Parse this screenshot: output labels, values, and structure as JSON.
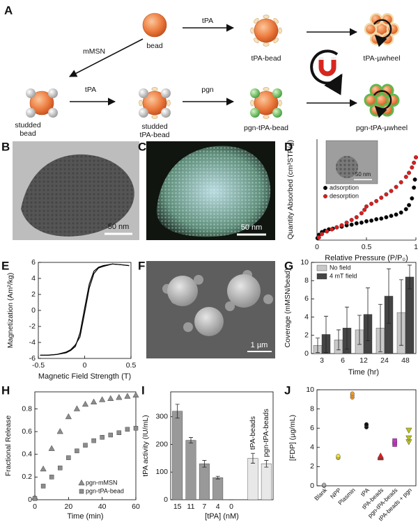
{
  "figure_a": {
    "label": "A",
    "nodes": {
      "bead": "bead",
      "tpa_bead": "tPA-bead",
      "tpa_uwheel": "tPA-µwheel",
      "studded_bead": [
        "studded",
        "bead"
      ],
      "studded_tpa_bead": [
        "studded",
        "tPA-bead"
      ],
      "pgn_tpa_bead": "pgn-tPA-bead",
      "pgn_tpa_uwheel": "pgn-tPA-µwheel"
    },
    "arrows": {
      "bead_to_tpa_bead": "tPA",
      "bead_to_studded": "mMSN",
      "studded_to_studded_tpa": "tPA",
      "studded_tpa_to_pgn": "pgn"
    }
  },
  "images": {
    "B": {
      "label": "B",
      "scale_bar": "50 nm"
    },
    "C": {
      "label": "C",
      "scale_bar": "50 nm"
    },
    "F": {
      "label": "F",
      "scale_bar": "1 µm"
    }
  },
  "chart_data": [
    {
      "label": "D",
      "type": "scatter",
      "inset_scale_bar": "50 nm",
      "x_label": "Relative Pressure (P/P₀)",
      "y_label": "Quantity Absorbed (cm³STP/g)",
      "xlim": [
        0,
        1
      ],
      "xticks": [
        0,
        0.5,
        1
      ],
      "ylim": [
        0,
        150
      ],
      "legend": "upper left",
      "series": [
        {
          "name": "adsorption",
          "color": "#000000",
          "marker": "circle",
          "x": [
            0.005,
            0.02,
            0.05,
            0.08,
            0.12,
            0.16,
            0.2,
            0.25,
            0.3,
            0.35,
            0.4,
            0.45,
            0.5,
            0.55,
            0.6,
            0.65,
            0.7,
            0.75,
            0.8,
            0.85,
            0.9,
            0.93,
            0.96,
            0.98,
            0.99
          ],
          "values": [
            3,
            8,
            12,
            14,
            16,
            17,
            19,
            20,
            22,
            23,
            25,
            26,
            28,
            29,
            31,
            32,
            34,
            36,
            38,
            41,
            46,
            52,
            62,
            78,
            90
          ]
        },
        {
          "name": "desorption",
          "color": "#e41a1c",
          "marker": "circle",
          "x": [
            0.02,
            0.05,
            0.1,
            0.15,
            0.2,
            0.25,
            0.3,
            0.35,
            0.4,
            0.45,
            0.48,
            0.5,
            0.55,
            0.6,
            0.65,
            0.7,
            0.75,
            0.8,
            0.85,
            0.9,
            0.93,
            0.96,
            0.98,
            1.0
          ],
          "values": [
            4,
            9,
            13,
            16,
            19,
            22,
            26,
            30,
            34,
            40,
            45,
            50,
            54,
            58,
            63,
            68,
            73,
            79,
            86,
            94,
            100,
            108,
            115,
            123
          ]
        }
      ]
    },
    {
      "label": "E",
      "type": "line",
      "x_label": "Magnetic Field Strength (T)",
      "y_label": "Magnetization (Am²/kg)",
      "xlim": [
        -0.5,
        0.5
      ],
      "xticks": [
        -0.5,
        0,
        0.5
      ],
      "ylim": [
        -6,
        6
      ],
      "yticks": [
        -6,
        -4,
        -2,
        0,
        2,
        4,
        6
      ],
      "x": [
        -0.48,
        -0.4,
        -0.3,
        -0.2,
        -0.15,
        -0.1,
        -0.05,
        0,
        0.05,
        0.1,
        0.15,
        0.2,
        0.3,
        0.4,
        0.48
      ],
      "series": [
        {
          "color": "#000000",
          "values": [
            -5.6,
            -5.6,
            -5.5,
            -5.3,
            -5.0,
            -4.5,
            -2.8,
            0.3,
            3.3,
            4.9,
            5.4,
            5.6,
            5.8,
            5.7,
            5.6
          ]
        },
        {
          "color": "#000000",
          "values": [
            -5.6,
            -5.6,
            -5.5,
            -5.2,
            -4.9,
            -4.3,
            -3.3,
            -0.3,
            2.8,
            4.6,
            5.3,
            5.5,
            5.8,
            5.7,
            5.6
          ]
        }
      ]
    },
    {
      "label": "G",
      "type": "bar",
      "x_label": "Time (hr)",
      "y_label": "Coverage (mMSN/bead)",
      "categories": [
        "3",
        "6",
        "12",
        "24",
        "48"
      ],
      "ylim": [
        0,
        10
      ],
      "yticks": [
        0,
        2,
        4,
        6,
        8,
        10
      ],
      "legend": "upper left",
      "series": [
        {
          "name": "No field",
          "color": "#c8c8c8",
          "values": [
            0.9,
            1.5,
            2.6,
            2.8,
            4.5
          ],
          "errors": [
            0.8,
            1.1,
            1.6,
            2.6,
            3.6
          ]
        },
        {
          "name": "4 mT field",
          "color": "#444444",
          "values": [
            2.1,
            2.8,
            4.3,
            6.3,
            8.4
          ],
          "errors": [
            2.0,
            2.3,
            2.9,
            3.0,
            1.3
          ]
        }
      ]
    },
    {
      "label": "H",
      "type": "scatter",
      "x_label": "Time (min)",
      "y_label": "Fractional Release",
      "xlim": [
        0,
        60
      ],
      "xticks": [
        0,
        20,
        40,
        60
      ],
      "ylim": [
        0,
        0.95
      ],
      "yticks": [
        0,
        0.2,
        0.4,
        0.6,
        0.8
      ],
      "legend": "lower right",
      "x": [
        0,
        5,
        10,
        15,
        20,
        25,
        30,
        35,
        40,
        45,
        50,
        55,
        60
      ],
      "series": [
        {
          "name": "pgn-mMSN",
          "color": "#8c8c8c",
          "marker": "triangle",
          "values": [
            0.02,
            0.27,
            0.45,
            0.6,
            0.73,
            0.8,
            0.84,
            0.86,
            0.88,
            0.89,
            0.9,
            0.91,
            0.92
          ]
        },
        {
          "name": "pgn-tPA-bead",
          "color": "#8c8c8c",
          "marker": "square",
          "values": [
            0.01,
            0.12,
            0.2,
            0.28,
            0.37,
            0.43,
            0.48,
            0.52,
            0.55,
            0.57,
            0.59,
            0.62,
            0.63
          ]
        }
      ]
    },
    {
      "label": "I",
      "type": "bar",
      "x_label": "[tPA] (nM)",
      "y_label": "tPA activity (IU/mL)",
      "categories": [
        "15",
        "11",
        "7",
        "4",
        "0"
      ],
      "values": [
        320,
        215,
        130,
        80,
        0
      ],
      "errors": [
        25,
        10,
        12,
        5,
        0
      ],
      "color": "#999999",
      "ylim": [
        0,
        390
      ],
      "yticks": [
        0,
        100,
        200,
        300
      ],
      "extra_bars": [
        {
          "name": "tPA-beads",
          "value": 150,
          "error": 18
        },
        {
          "name": "pgn-tPA-beads",
          "value": 130,
          "error": 12
        }
      ],
      "extra_color": "#e8e8e8"
    },
    {
      "label": "J",
      "type": "strip",
      "y_label": "[FDP] (µg/mL)",
      "categories": [
        "Blank",
        "NPP",
        "Plasmin",
        "tPA",
        "tPA-beads",
        "pgn-tPA-beads",
        "tPA-beads + pgn"
      ],
      "ylim": [
        0,
        10
      ],
      "yticks": [
        0,
        2,
        4,
        6,
        8,
        10
      ],
      "groups": [
        {
          "color": "#aaaaaa",
          "marker": "circle",
          "values": [
            0,
            0.05,
            0.1
          ]
        },
        {
          "color": "#f2e024",
          "marker": "circle",
          "values": [
            2.9,
            3.0,
            3.1
          ]
        },
        {
          "color": "#f29a2e",
          "marker": "circle",
          "values": [
            9.2,
            9.4,
            9.6
          ]
        },
        {
          "color": "#111111",
          "marker": "circle",
          "values": [
            6.1,
            6.3,
            6.4
          ]
        },
        {
          "color": "#e31a1c",
          "marker": "triangle",
          "values": [
            2.9,
            3.0,
            3.1
          ]
        },
        {
          "color": "#d62ad6",
          "marker": "square",
          "values": [
            4.3,
            4.5,
            4.7
          ]
        },
        {
          "color": "#bcc21a",
          "marker": "triangle-down",
          "values": [
            4.6,
            5.0,
            5.8
          ]
        }
      ]
    }
  ]
}
